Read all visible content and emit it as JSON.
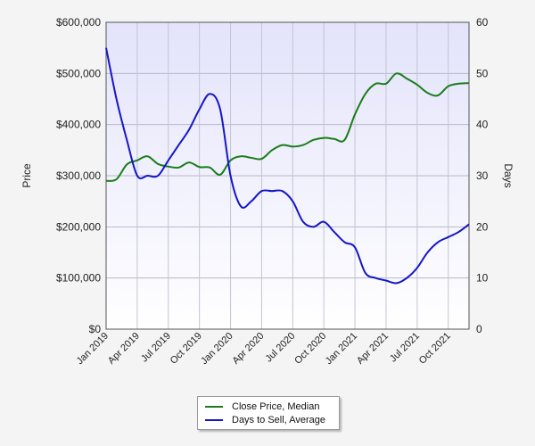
{
  "chart_data": {
    "type": "line",
    "title": "",
    "xlabel": "",
    "ylabel_left": "Price",
    "ylabel_right": "Days",
    "x": [
      "2019-01",
      "2019-02",
      "2019-03",
      "2019-04",
      "2019-05",
      "2019-06",
      "2019-07",
      "2019-08",
      "2019-09",
      "2019-10",
      "2019-11",
      "2019-12",
      "2020-01",
      "2020-02",
      "2020-03",
      "2020-04",
      "2020-05",
      "2020-06",
      "2020-07",
      "2020-08",
      "2020-09",
      "2020-10",
      "2020-11",
      "2020-12",
      "2021-01",
      "2021-02",
      "2021-03",
      "2021-04",
      "2021-05",
      "2021-06",
      "2021-07",
      "2021-08",
      "2021-09",
      "2021-10",
      "2021-11",
      "2021-12"
    ],
    "x_tick_labels": [
      "Jan 2019",
      "Apr 2019",
      "Jul 2019",
      "Oct 2019",
      "Jan 2020",
      "Apr 2020",
      "Jul 2020",
      "Oct 2020",
      "Jan 2021",
      "Apr 2021",
      "Jul 2021",
      "Oct 2021"
    ],
    "y_left_ticks": [
      "$0",
      "$100,000",
      "$200,000",
      "$300,000",
      "$400,000",
      "$500,000",
      "$600,000"
    ],
    "y_left_range": [
      0,
      600000
    ],
    "y_right_ticks": [
      "0",
      "10",
      "20",
      "30",
      "40",
      "50",
      "60"
    ],
    "y_right_range": [
      0,
      60
    ],
    "grid": true,
    "legend_position": "bottom-center",
    "series": [
      {
        "name": "Close Price, Median",
        "axis": "left",
        "color": "#1a7d1a",
        "values": [
          290000,
          293000,
          322000,
          330000,
          338000,
          323000,
          318000,
          316000,
          326000,
          317000,
          316000,
          302000,
          330000,
          338000,
          335000,
          333000,
          350000,
          360000,
          357000,
          360000,
          370000,
          374000,
          372000,
          370000,
          420000,
          460000,
          480000,
          480000,
          500000,
          490000,
          478000,
          462000,
          457000,
          475000,
          480000,
          481000
        ]
      },
      {
        "name": "Days to Sell, Average",
        "axis": "right",
        "color": "#1515c8",
        "values": [
          55,
          45,
          37,
          30,
          30,
          30,
          33,
          36,
          39,
          43,
          46,
          43,
          30,
          24,
          25,
          27,
          27,
          27,
          25,
          21,
          20,
          21,
          19,
          17,
          16,
          11,
          10,
          9.5,
          9,
          10,
          12,
          15,
          17,
          18,
          19,
          20.5
        ]
      }
    ]
  }
}
